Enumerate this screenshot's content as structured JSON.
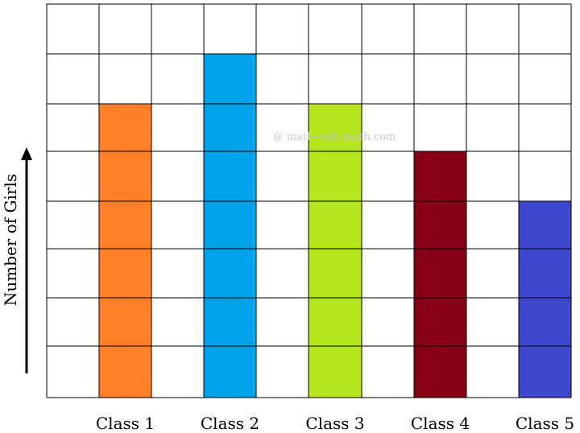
{
  "chart_data": {
    "type": "bar",
    "categories": [
      "Class 1",
      "Class 2",
      "Class 3",
      "Class 4",
      "Class 5"
    ],
    "values": [
      6,
      7,
      6,
      5,
      4
    ],
    "colors": [
      "#FF7F27",
      "#00A2E8",
      "#B5E61D",
      "#880015",
      "#3F48CC"
    ],
    "ylabel": "Number of Girls",
    "xlabel": "",
    "title": "",
    "ylim": [
      0,
      8
    ],
    "grid": true,
    "watermark": "@ math-only-math.com"
  }
}
